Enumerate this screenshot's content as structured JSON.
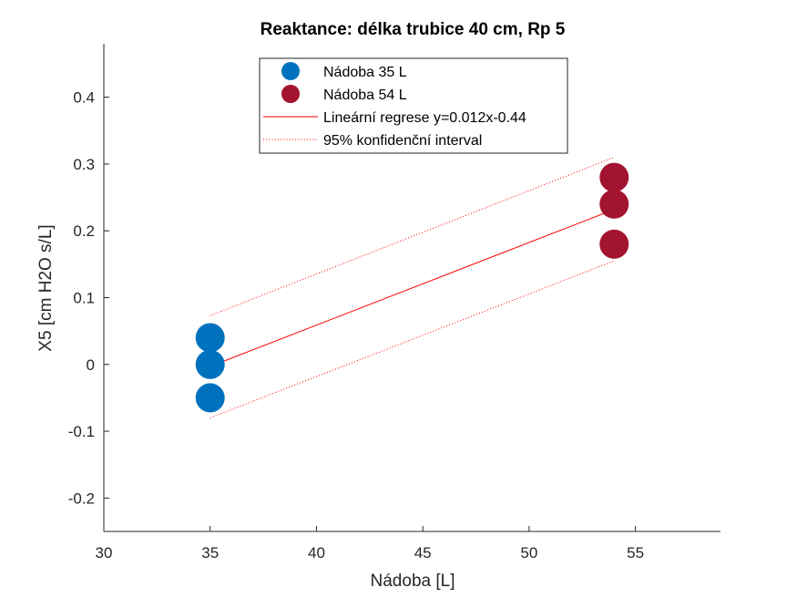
{
  "chart_data": {
    "type": "scatter",
    "title": "Reaktance: délka trubice 40 cm, Rp 5",
    "xlabel": "Nádoba [L]",
    "ylabel": "X5 [cm H2O s/L]",
    "xlim": [
      30,
      59
    ],
    "ylim": [
      -0.25,
      0.48
    ],
    "xticks": [
      30,
      35,
      40,
      45,
      50,
      55
    ],
    "yticks": [
      -0.2,
      -0.1,
      0,
      0.1,
      0.2,
      0.3,
      0.4
    ],
    "xtick_labels": [
      "30",
      "35",
      "40",
      "45",
      "50",
      "55"
    ],
    "ytick_labels": [
      "-0.2",
      "-0.1",
      "0",
      "0.1",
      "0.2",
      "0.3",
      "0.4"
    ],
    "grid": false,
    "legend_position": "top",
    "series": [
      {
        "name": "Nádoba 35 L",
        "kind": "points",
        "color": "#0072BD",
        "x": [
          35,
          35,
          35
        ],
        "y": [
          0.04,
          0.0,
          -0.05
        ]
      },
      {
        "name": "Nádoba 54 L",
        "kind": "points",
        "color": "#A2142F",
        "x": [
          54,
          54,
          54
        ],
        "y": [
          0.28,
          0.24,
          0.18
        ]
      },
      {
        "name": "Lineární regrese y=0.012x-0.44",
        "kind": "line",
        "color": "#FF0000",
        "x": [
          35,
          54
        ],
        "y": [
          -0.003,
          0.232
        ]
      },
      {
        "name": "95% konfidenční interval",
        "kind": "dotted",
        "color": "#FF0000",
        "bands": [
          {
            "x": [
              35,
              54
            ],
            "y": [
              0.073,
              0.31
            ]
          },
          {
            "x": [
              35,
              54
            ],
            "y": [
              -0.08,
              0.155
            ]
          }
        ]
      }
    ]
  }
}
